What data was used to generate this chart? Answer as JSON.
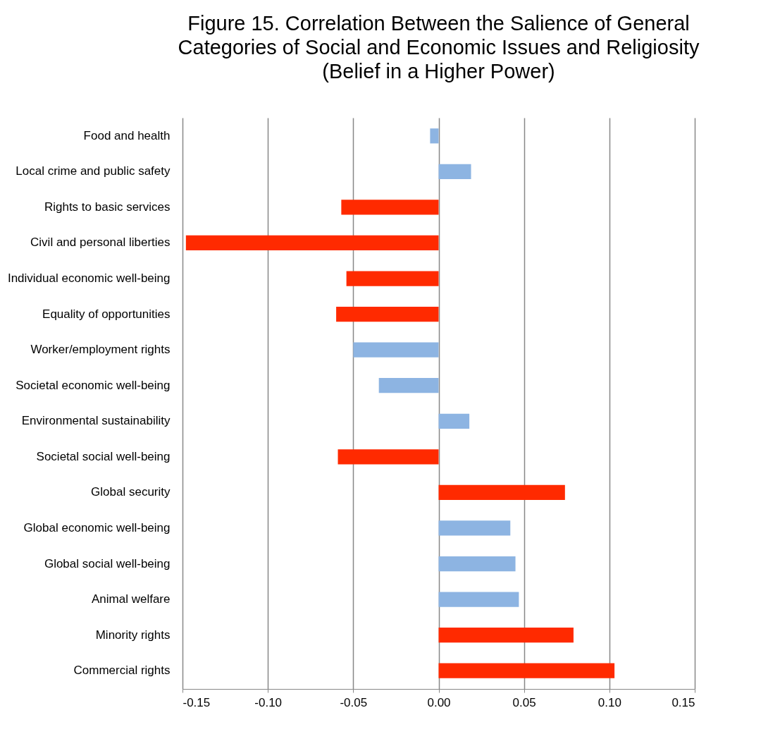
{
  "chart_data": {
    "type": "bar",
    "orientation": "horizontal",
    "title": "Figure 15. Correlation Between the Salience of General\nCategories of Social and Economic Issues and Religiosity\n(Belief in a Higher Power)",
    "categories": [
      "Food and health",
      "Local crime and public safety",
      "Rights to basic services",
      "Civil and personal liberties",
      "Individual economic well-being",
      "Equality of opportunities",
      "Worker/employment rights",
      "Societal economic well-being",
      "Environmental sustainability",
      "Societal social well-being",
      "Global security",
      "Global economic well-being",
      "Global social well-being",
      "Animal welfare",
      "Minority rights",
      "Commercial rights"
    ],
    "values": [
      -0.005,
      0.019,
      -0.057,
      -0.148,
      -0.054,
      -0.06,
      -0.05,
      -0.035,
      0.018,
      -0.059,
      0.074,
      0.042,
      0.045,
      0.047,
      0.079,
      0.103
    ],
    "colors": [
      "#8db4e2",
      "#8db4e2",
      "#ff2a00",
      "#ff2a00",
      "#ff2a00",
      "#ff2a00",
      "#8db4e2",
      "#8db4e2",
      "#8db4e2",
      "#ff2a00",
      "#ff2a00",
      "#8db4e2",
      "#8db4e2",
      "#8db4e2",
      "#ff2a00",
      "#ff2a00"
    ],
    "xlim": [
      -0.15,
      0.15
    ],
    "xticks": [
      {
        "value": -0.15,
        "label": "-0.15"
      },
      {
        "value": -0.1,
        "label": "-0.10"
      },
      {
        "value": -0.05,
        "label": "-0.05"
      },
      {
        "value": 0,
        "label": "0.00"
      },
      {
        "value": 0.05,
        "label": "0.05"
      },
      {
        "value": 0.1,
        "label": "0.10"
      },
      {
        "value": 0.15,
        "label": "0.15"
      }
    ],
    "grid": "x"
  }
}
